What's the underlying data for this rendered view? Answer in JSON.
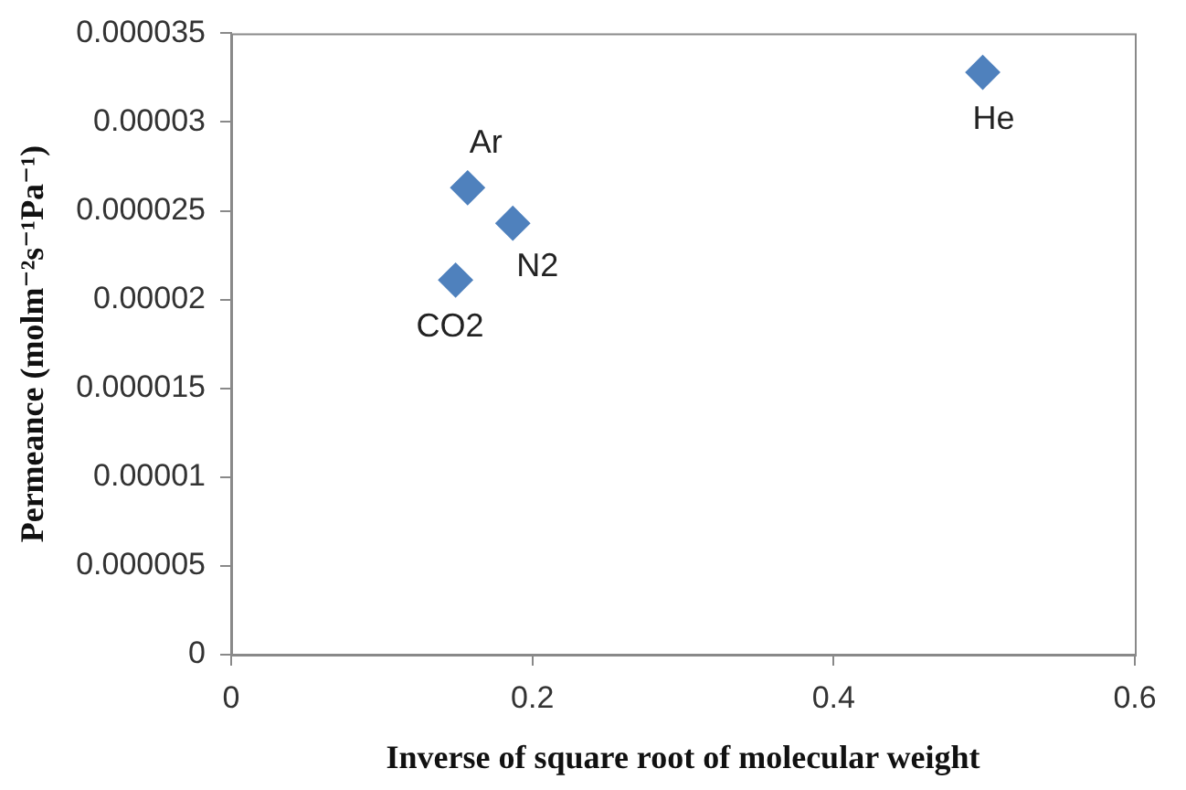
{
  "chart_data": {
    "type": "scatter",
    "xlabel": "Inverse of square root of molecular weight",
    "ylabel": "Permeance (molm⁻²s⁻¹Pa⁻¹)",
    "x": [
      0.157,
      0.187,
      0.149,
      0.499
    ],
    "values": [
      2.63e-05,
      2.43e-05,
      2.11e-05,
      3.28e-05
    ],
    "color": "#4f81bd",
    "marker": "diamond",
    "xlim": [
      0,
      0.6
    ],
    "xticks": [
      0,
      0.2,
      0.4,
      0.6
    ],
    "ylim": [
      0,
      3.5e-05
    ],
    "yticks": [
      0,
      {
        "value": 5e-06,
        "label": "0.000005"
      },
      {
        "value": 1e-05,
        "label": "0.00001"
      },
      {
        "value": 1.5e-05,
        "label": "0.000015"
      },
      {
        "value": 2e-05,
        "label": "0.00002"
      },
      {
        "value": 2.5e-05,
        "label": "0.000025"
      },
      {
        "value": 3e-05,
        "label": "0.00003"
      },
      {
        "value": 3.5e-05,
        "label": "0.000035"
      }
    ],
    "grid": false,
    "legend": false,
    "annotations": [
      {
        "text": "Ar",
        "x": 0.157,
        "y": 2.63e-05
      },
      {
        "text": "N2",
        "x": 0.187,
        "y": 2.43e-05
      },
      {
        "text": "CO2",
        "x": 0.149,
        "y": 2.11e-05
      },
      {
        "text": "He",
        "x": 0.499,
        "y": 3.28e-05
      }
    ]
  }
}
